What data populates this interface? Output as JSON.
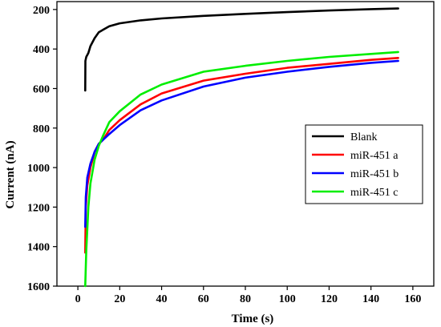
{
  "chart_data": {
    "type": "line",
    "xlabel": "Time (s)",
    "ylabel": "Current (nA)",
    "xlim": [
      -10,
      170
    ],
    "ylim": [
      160,
      1600
    ],
    "y_inverted": true,
    "x_ticks": [
      0,
      20,
      40,
      60,
      80,
      100,
      120,
      140,
      160
    ],
    "y_ticks": [
      200,
      400,
      600,
      800,
      1000,
      1200,
      1400,
      1600
    ],
    "grid": false,
    "legend_position": "right",
    "series": [
      {
        "name": "Blank",
        "color": "#000000",
        "points": [
          [
            3.5,
            610
          ],
          [
            3.6,
            460
          ],
          [
            4,
            440
          ],
          [
            5,
            420
          ],
          [
            6,
            385
          ],
          [
            8,
            345
          ],
          [
            10,
            315
          ],
          [
            15,
            285
          ],
          [
            20,
            270
          ],
          [
            30,
            255
          ],
          [
            40,
            245
          ],
          [
            60,
            232
          ],
          [
            80,
            222
          ],
          [
            100,
            213
          ],
          [
            120,
            205
          ],
          [
            140,
            198
          ],
          [
            153,
            195
          ]
        ]
      },
      {
        "name": "miR-451 a",
        "color": "#ff0000",
        "points": [
          [
            3.5,
            1430
          ],
          [
            3.8,
            1200
          ],
          [
            4.5,
            1090
          ],
          [
            6,
            1000
          ],
          [
            8,
            920
          ],
          [
            10,
            880
          ],
          [
            12,
            860
          ],
          [
            15,
            810
          ],
          [
            20,
            760
          ],
          [
            30,
            680
          ],
          [
            40,
            625
          ],
          [
            60,
            560
          ],
          [
            80,
            525
          ],
          [
            100,
            495
          ],
          [
            120,
            475
          ],
          [
            140,
            455
          ],
          [
            153,
            445
          ]
        ]
      },
      {
        "name": "miR-451 b",
        "color": "#0000ff",
        "points": [
          [
            3.5,
            1300
          ],
          [
            3.8,
            1150
          ],
          [
            4.5,
            1050
          ],
          [
            6,
            980
          ],
          [
            8,
            920
          ],
          [
            10,
            880
          ],
          [
            12,
            860
          ],
          [
            15,
            830
          ],
          [
            20,
            785
          ],
          [
            30,
            710
          ],
          [
            40,
            660
          ],
          [
            60,
            590
          ],
          [
            80,
            545
          ],
          [
            100,
            515
          ],
          [
            120,
            490
          ],
          [
            140,
            470
          ],
          [
            153,
            460
          ]
        ]
      },
      {
        "name": "miR-451 c",
        "color": "#00ee00",
        "points": [
          [
            3.5,
            1600
          ],
          [
            4,
            1420
          ],
          [
            5,
            1200
          ],
          [
            6,
            1080
          ],
          [
            8,
            960
          ],
          [
            10,
            890
          ],
          [
            12,
            840
          ],
          [
            15,
            770
          ],
          [
            20,
            715
          ],
          [
            30,
            630
          ],
          [
            40,
            580
          ],
          [
            60,
            515
          ],
          [
            80,
            485
          ],
          [
            100,
            460
          ],
          [
            120,
            440
          ],
          [
            140,
            425
          ],
          [
            153,
            415
          ]
        ]
      }
    ]
  }
}
